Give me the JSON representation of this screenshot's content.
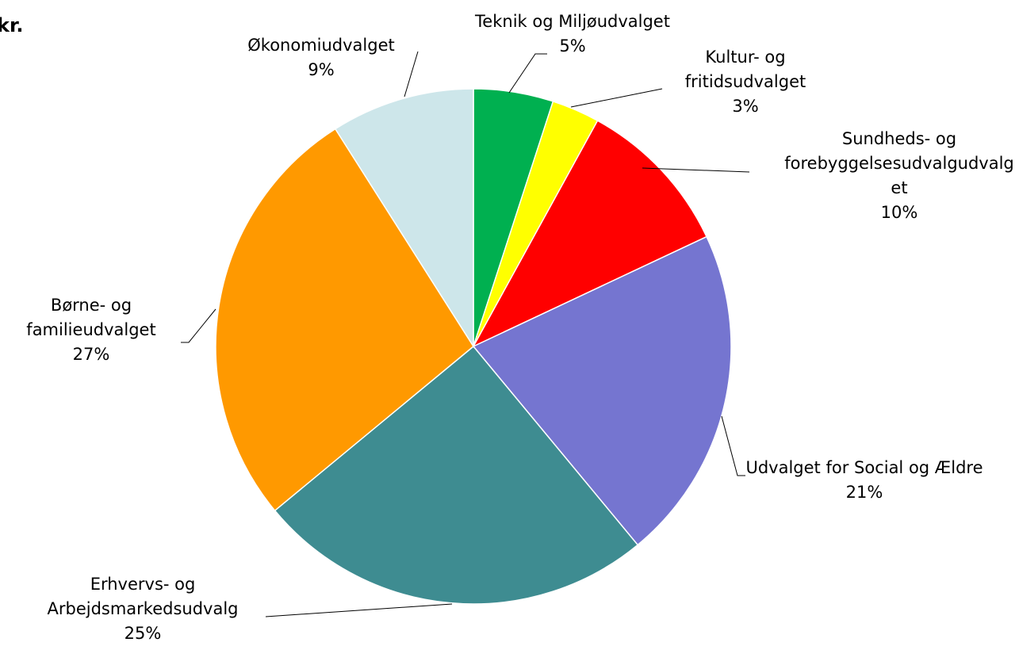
{
  "chart_data": {
    "type": "pie",
    "title": "kr.",
    "categories": [
      "Teknik og Miljøudvalget",
      "Kultur- og fritidsudvalget",
      "Sundheds- og forebyggelsesudvalgudvalget",
      "Udvalget for Social og Ældre",
      "Erhvervs- og Arbejdsmarkedsudvalg",
      "Børne- og familieudvalget",
      "Økonomiudvalget"
    ],
    "values": [
      5,
      3,
      10,
      21,
      25,
      27,
      9
    ],
    "value_labels": [
      "5%",
      "3%",
      "10%",
      "21%",
      "25%",
      "27%",
      "9%"
    ],
    "colors": [
      "#00b050",
      "#ffff00",
      "#ff0000",
      "#7575d0",
      "#3e8c91",
      "#ff9900",
      "#cde6ea"
    ]
  }
}
